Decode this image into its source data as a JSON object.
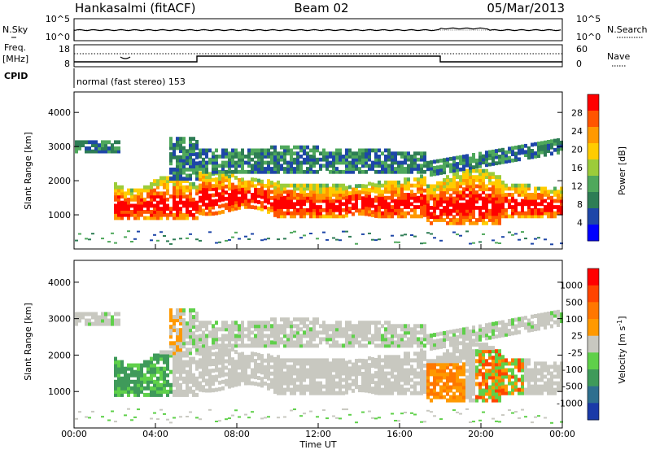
{
  "header": {
    "station": "Hankasalmi (fitACF)",
    "beam": "Beam 02",
    "date": "05/Mar/2013"
  },
  "noise_panel": {
    "left_label": "N.Sky",
    "right_label": "N.Search",
    "left_ticks": [
      "10^5",
      "10^0"
    ],
    "right_ticks": [
      "10^5",
      "10^0"
    ]
  },
  "freq_panel": {
    "left_label_line1": "Freq.",
    "left_label_line2": "[MHz]",
    "left_ticks": [
      "18",
      "8"
    ],
    "right_label": "Nave",
    "right_ticks": [
      "60",
      "0"
    ]
  },
  "cpid_panel": {
    "label": "CPID",
    "text": "normal (fast stereo) 153"
  },
  "power_panel": {
    "ylabel": "Slant Range [km]",
    "yticks": [
      "4000",
      "3000",
      "2000",
      "1000"
    ],
    "colorbar_label": "Power [dB]",
    "colorbar_ticks": [
      "28",
      "24",
      "20",
      "16",
      "12",
      "8",
      "4"
    ],
    "colors": [
      "#0000ff",
      "#1e46a8",
      "#2e7d55",
      "#4fa85c",
      "#9ccc3a",
      "#ffcc00",
      "#ff9900",
      "#ff5500",
      "#ff0000"
    ]
  },
  "velocity_panel": {
    "ylabel": "Slant Range [km]",
    "yticks": [
      "4000",
      "3000",
      "2000",
      "1000"
    ],
    "colorbar_label": "Velocity [m s^-1]",
    "colorbar_ticks": [
      "1000",
      "500",
      "100",
      "25",
      "-25",
      "-100",
      "-500",
      "-1000"
    ],
    "colors": [
      "#1a3aa8",
      "#2e6f8f",
      "#3f9a5a",
      "#5fd04a",
      "#c8c8c0",
      "#ff9900",
      "#ff7700",
      "#ff4400",
      "#ff0000"
    ]
  },
  "x_axis": {
    "label": "Time UT",
    "ticks": [
      "00:00",
      "04:00",
      "08:00",
      "12:00",
      "16:00",
      "20:00",
      "00:00"
    ]
  }
}
